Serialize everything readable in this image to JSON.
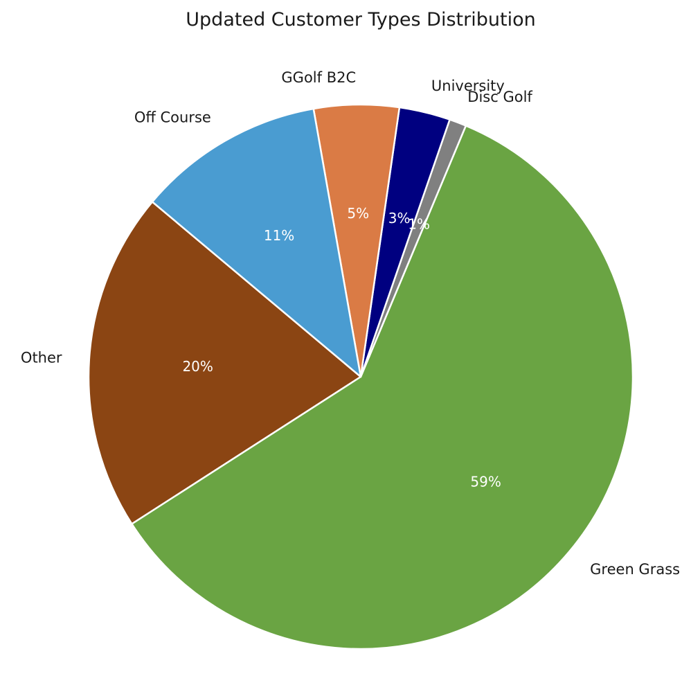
{
  "chart_data": {
    "type": "pie",
    "title": "Updated Customer Types Distribution",
    "start_angle_deg": 140,
    "direction": "counterclockwise",
    "slices": [
      {
        "label": "Other",
        "value": 20,
        "pct_label": "20%",
        "color": "#8B4513"
      },
      {
        "label": "Green Grass",
        "value": 59,
        "pct_label": "59%",
        "color": "#6AA443"
      },
      {
        "label": "Disc Golf",
        "value": 1,
        "pct_label": "1%",
        "color": "#808080"
      },
      {
        "label": "University",
        "value": 3,
        "pct_label": "3%",
        "color": "#000080"
      },
      {
        "label": "GGolf B2C",
        "value": 5,
        "pct_label": "5%",
        "color": "#DA7B45"
      },
      {
        "label": "Off Course",
        "value": 11,
        "pct_label": "11%",
        "color": "#4A9CD1"
      }
    ]
  }
}
